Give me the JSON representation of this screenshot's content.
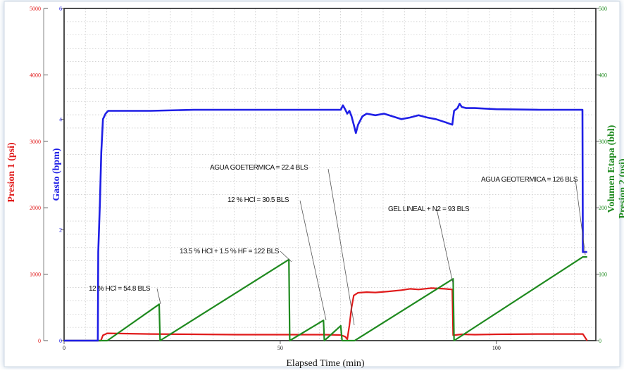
{
  "chart_data": {
    "type": "line",
    "xlabel": "Elapsed Time (min)",
    "x_ticks": [
      0,
      50,
      100
    ],
    "xlim": [
      0,
      123
    ],
    "axes": {
      "p1": {
        "label": "Presion 1 (psi)",
        "ticks": [
          0,
          1000,
          2000,
          3000,
          4000,
          5000
        ],
        "lim": [
          0,
          5000
        ],
        "color": "#e01b1b"
      },
      "gasto": {
        "label": "Gasto (bpm)",
        "ticks": [
          0,
          2,
          4,
          6
        ],
        "lim": [
          0,
          6
        ],
        "color": "#1f1fe6"
      },
      "vol": {
        "label": "Volumen Etapa (bbl)",
        "label2": "Presion 2 (psi)",
        "ticks": [
          0,
          100,
          200,
          300,
          400,
          500
        ],
        "lim": [
          0,
          500
        ],
        "color": "#1f8a1f"
      }
    },
    "colors": {
      "gasto": "#1f1fe6",
      "presion": "#e01b1b",
      "volumen": "#1f8a1f"
    },
    "series": [
      {
        "axis": "gasto",
        "color": "#1f1fe6",
        "x": [
          0,
          7.8,
          7.9,
          8.3,
          8.6,
          9.0,
          9.6,
          10.2,
          20,
          30,
          40,
          50,
          60,
          64,
          64.5,
          65,
          65.5,
          66,
          66.5,
          67,
          67.5,
          68,
          69,
          70,
          72,
          74,
          76,
          78,
          80,
          82,
          84,
          86,
          88,
          89.8,
          90.2,
          91,
          91.5,
          92,
          93,
          95,
          100,
          110,
          119.9,
          120,
          121
        ],
        "y": [
          0,
          0,
          1.6,
          2.5,
          3.4,
          4.0,
          4.1,
          4.15,
          4.15,
          4.17,
          4.17,
          4.17,
          4.17,
          4.17,
          4.25,
          4.18,
          4.1,
          4.15,
          4.05,
          3.9,
          3.75,
          3.9,
          4.05,
          4.1,
          4.07,
          4.1,
          4.05,
          4.0,
          4.03,
          4.07,
          4.03,
          4.0,
          3.95,
          3.9,
          4.15,
          4.2,
          4.28,
          4.22,
          4.2,
          4.2,
          4.18,
          4.17,
          4.17,
          1.6,
          1.6
        ]
      },
      {
        "axis": "p1",
        "color": "#e01b1b",
        "x": [
          0,
          8.5,
          9,
          10,
          15,
          20,
          30,
          40,
          50,
          60,
          64,
          65,
          65.5,
          66,
          66.5,
          67,
          67.5,
          68,
          70,
          72,
          75,
          78,
          80,
          82,
          85,
          88,
          89.8,
          90,
          92,
          95,
          100,
          110,
          120,
          121
        ],
        "y": [
          0,
          0,
          80,
          110,
          105,
          100,
          95,
          90,
          90,
          90,
          85,
          60,
          20,
          230,
          500,
          680,
          700,
          720,
          730,
          725,
          740,
          760,
          780,
          770,
          790,
          780,
          770,
          80,
          95,
          90,
          95,
          100,
          100,
          0
        ]
      },
      {
        "axis": "vol",
        "color": "#1f8a1f",
        "x": [
          0,
          10,
          22,
          22.2,
          52,
          52.2,
          60,
          60.2,
          64,
          64.3,
          67,
          67.2,
          90,
          90.2,
          120,
          121
        ],
        "y": [
          0,
          0,
          54.8,
          0,
          122,
          0,
          30.5,
          0,
          22.4,
          0,
          0,
          0,
          93,
          0,
          126,
          126
        ]
      }
    ],
    "annotations": [
      {
        "text": "12 % HCl = 54.8 BLS"
      },
      {
        "text": "13.5 % HCl + 1.5 % HF = 122 BLS"
      },
      {
        "text": "12 % HCl = 30.5 BLS"
      },
      {
        "text": "AGUA GOETERMICA = 22.4 BLS"
      },
      {
        "text": "GEL LINEAL + N2 = 93 BLS"
      },
      {
        "text": "AGUA GEOTERMICA = 126 BLS"
      }
    ]
  }
}
